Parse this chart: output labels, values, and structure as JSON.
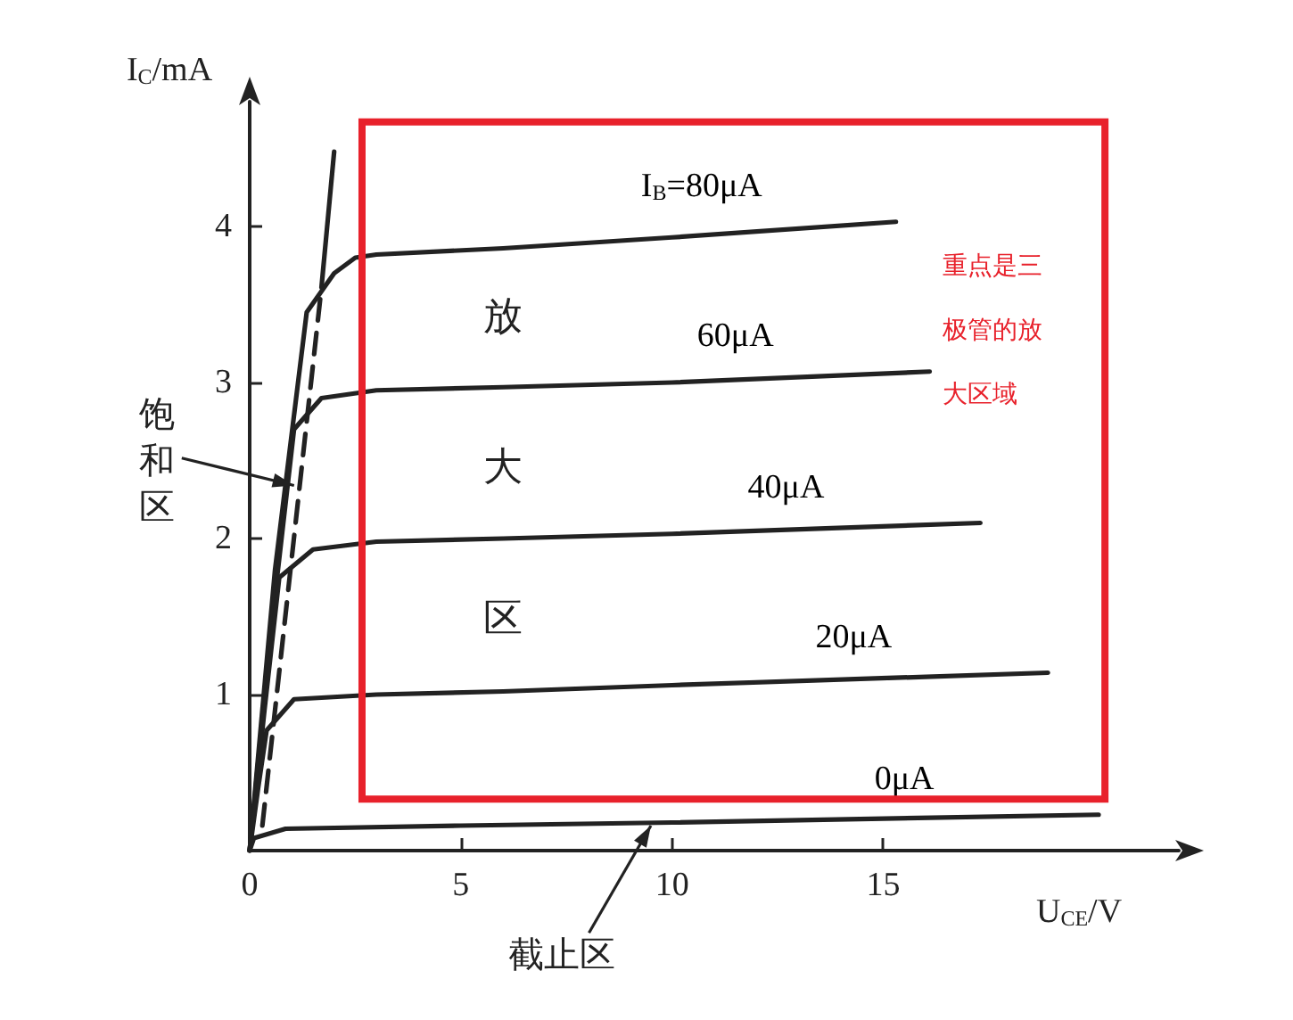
{
  "chart_data": {
    "type": "line",
    "xlabel": "U$_{CE}$/V",
    "ylabel": "I$_{C}$/mA",
    "xlim": [
      0,
      22
    ],
    "ylim": [
      0,
      4.8
    ],
    "xticks": [
      0,
      5,
      10,
      15
    ],
    "yticks": [
      {
        "value": 0,
        "label": null
      },
      1,
      2,
      3,
      4
    ],
    "grid": false,
    "legend": false,
    "marker": "none",
    "line_style": "solid",
    "series": [
      {
        "name": "I$_{B}$=80μA",
        "color": "#222222",
        "x": [
          0,
          0.6,
          1.35,
          2,
          2.5,
          3,
          6,
          10,
          15.3
        ],
        "values": [
          0,
          1.8,
          3.45,
          3.7,
          3.8,
          3.82,
          3.86,
          3.93,
          4.03
        ]
      },
      {
        "name": "60μA",
        "color": "#222222",
        "x": [
          0,
          0.5,
          1.05,
          1.7,
          3,
          6,
          10,
          16.1
        ],
        "values": [
          0,
          1.4,
          2.7,
          2.9,
          2.95,
          2.97,
          3.0,
          3.07
        ]
      },
      {
        "name": "40μA",
        "color": "#222222",
        "x": [
          0,
          0.35,
          0.7,
          1.5,
          3,
          6,
          10,
          17.3
        ],
        "values": [
          0,
          0.9,
          1.75,
          1.93,
          1.98,
          2.0,
          2.03,
          2.1
        ]
      },
      {
        "name": "20μA",
        "color": "#222222",
        "x": [
          0,
          0.2,
          0.4,
          1.05,
          3,
          6,
          10,
          18.9
        ],
        "values": [
          0,
          0.4,
          0.77,
          0.97,
          1.0,
          1.02,
          1.06,
          1.14
        ]
      },
      {
        "name": "0μA",
        "color": "#222222",
        "x": [
          0,
          0.1,
          0.85,
          5,
          10,
          20.1
        ],
        "values": [
          0,
          0.08,
          0.14,
          0.16,
          0.18,
          0.23
        ]
      },
      {
        "color": "#222222",
        "line_style": "dashed",
        "x": [
          0.3,
          1.7
        ],
        "values": [
          0.16,
          3.61
        ]
      },
      {
        "color": "#222222",
        "line_style": "solid",
        "x": [
          1.7,
          2.0
        ],
        "values": [
          3.61,
          4.48
        ]
      }
    ],
    "annotations": [
      "放",
      "大",
      "区",
      {
        "text": "饱和区",
        "x": 1.05,
        "y": 2.34
      },
      {
        "text": "截止区",
        "x": 9.5,
        "y": 0.16
      },
      "重点是三极管的放大区域"
    ]
  }
}
